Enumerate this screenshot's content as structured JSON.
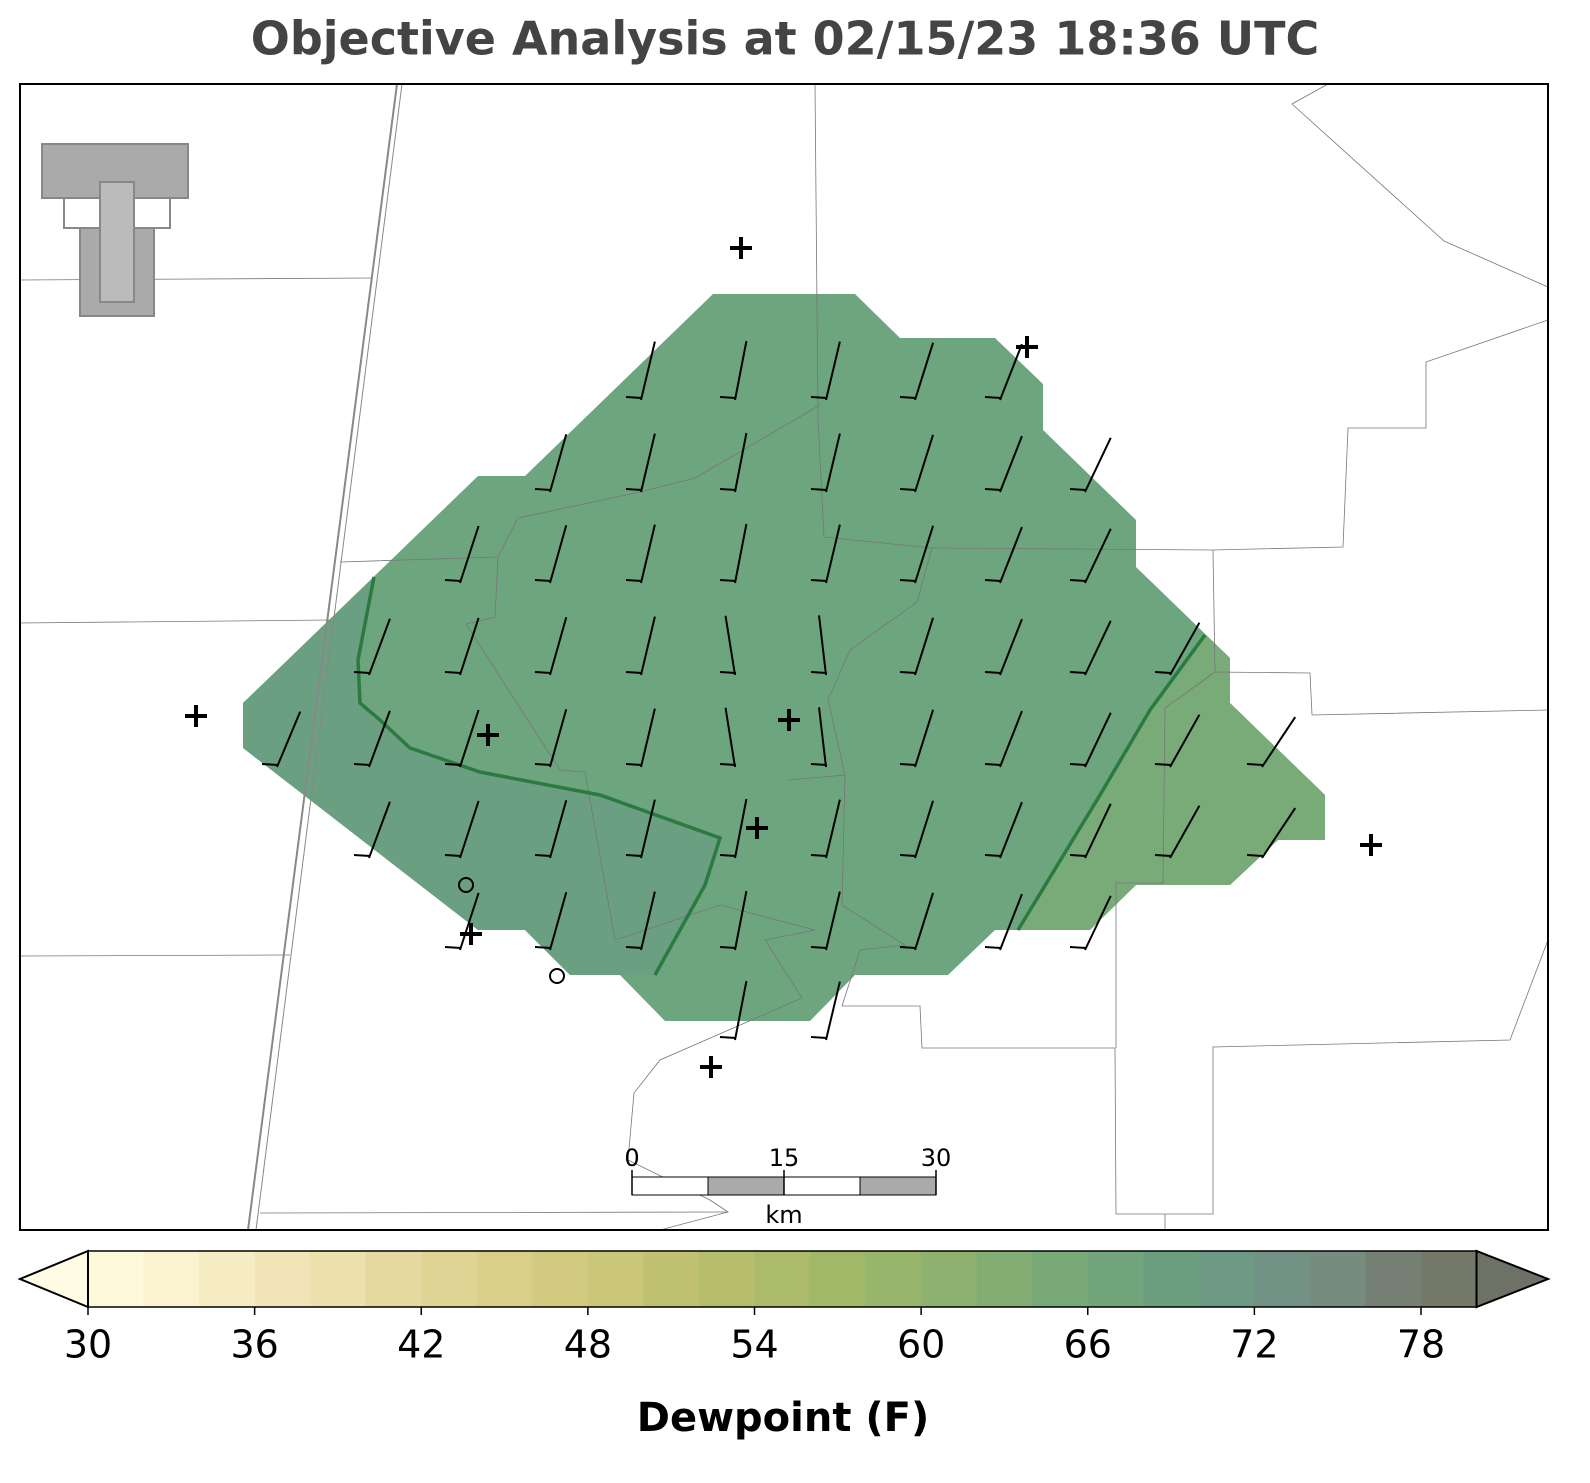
{
  "title": "Objective Analysis at 02/15/23 18:36 UTC",
  "colorbar": {
    "label": "Dewpoint (F)",
    "lim": [
      30,
      80
    ],
    "ticks": [
      30,
      36,
      42,
      48,
      54,
      60,
      66,
      72,
      78
    ],
    "colors": [
      "#fff9dc",
      "#fbf3d0",
      "#f6ecc4",
      "#f1e5b8",
      "#ece0ac",
      "#e6d9a0",
      "#e0d494",
      "#d9cf88",
      "#d2cb7f",
      "#cac778",
      "#c0c271",
      "#b6be6c",
      "#acbb69",
      "#a2b869",
      "#98b56c",
      "#8eb170",
      "#84ad74",
      "#7aa978",
      "#72a57c",
      "#6c9f80",
      "#6e9984",
      "#729285",
      "#768c7e",
      "#767f73",
      "#737868"
    ],
    "under_color": "#fffbe4",
    "over_color": "#6e7266"
  },
  "scale_bar": {
    "ticks": [
      0,
      15,
      30
    ],
    "unit": "km"
  }
}
